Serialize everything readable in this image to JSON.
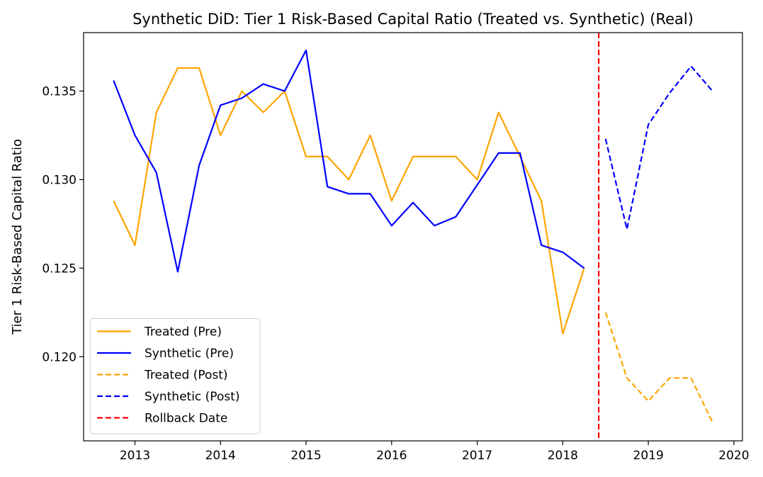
{
  "chart_data": {
    "type": "line",
    "title": "Synthetic DiD: Tier 1 Risk-Based Capital Ratio (Treated vs. Synthetic) (Real)",
    "xlabel": "",
    "ylabel": "Tier 1 Risk-Based Capital Ratio",
    "xlim": [
      2012.4,
      2020.1
    ],
    "ylim": [
      0.11525,
      0.1383
    ],
    "xticks": [
      2013,
      2014,
      2015,
      2016,
      2017,
      2018,
      2019,
      2020
    ],
    "yticks": [
      0.12,
      0.125,
      0.13,
      0.135
    ],
    "ytick_labels": [
      "0.120",
      "0.125",
      "0.130",
      "0.135"
    ],
    "grid": false,
    "legend_position": "lower-left",
    "series": [
      {
        "name": "Treated (Pre)",
        "color": "#FFA500",
        "style": "solid",
        "x": [
          2012.75,
          2013.0,
          2013.25,
          2013.5,
          2013.75,
          2014.0,
          2014.25,
          2014.5,
          2014.75,
          2015.0,
          2015.25,
          2015.5,
          2015.75,
          2016.0,
          2016.25,
          2016.5,
          2016.75,
          2017.0,
          2017.25,
          2017.5,
          2017.75,
          2018.0,
          2018.25
        ],
        "values": [
          0.1288,
          0.1263,
          0.1338,
          0.1363,
          0.1363,
          0.1325,
          0.135,
          0.1338,
          0.135,
          0.1313,
          0.1313,
          0.13,
          0.1325,
          0.1288,
          0.1313,
          0.1313,
          0.1313,
          0.13,
          0.1338,
          0.1313,
          0.1288,
          0.1213,
          0.125
        ]
      },
      {
        "name": "Synthetic (Pre)",
        "color": "#0000FF",
        "style": "solid",
        "x": [
          2012.75,
          2013.0,
          2013.25,
          2013.5,
          2013.75,
          2014.0,
          2014.25,
          2014.5,
          2014.75,
          2015.0,
          2015.25,
          2015.5,
          2015.75,
          2016.0,
          2016.25,
          2016.5,
          2016.75,
          2017.0,
          2017.25,
          2017.5,
          2017.75,
          2018.0,
          2018.25
        ],
        "values": [
          0.1356,
          0.1325,
          0.1304,
          0.1248,
          0.1308,
          0.1342,
          0.1346,
          0.1354,
          0.135,
          0.1373,
          0.1296,
          0.1292,
          0.1292,
          0.1274,
          0.1287,
          0.1274,
          0.1279,
          0.1297,
          0.1315,
          0.1315,
          0.1263,
          0.1259,
          0.125
        ]
      },
      {
        "name": "Treated (Post)",
        "color": "#FFA500",
        "style": "dashed",
        "x": [
          2018.5,
          2018.75,
          2019.0,
          2019.25,
          2019.5,
          2019.75
        ],
        "values": [
          0.1225,
          0.1188,
          0.1175,
          0.1188,
          0.1188,
          0.1163
        ]
      },
      {
        "name": "Synthetic (Post)",
        "color": "#0000FF",
        "style": "dashed",
        "x": [
          2018.5,
          2018.75,
          2019.0,
          2019.25,
          2019.5,
          2019.75
        ],
        "values": [
          0.1323,
          0.1272,
          0.1331,
          0.1349,
          0.1364,
          0.135
        ]
      }
    ],
    "vlines": [
      {
        "name": "Rollback Date",
        "x": 2018.42,
        "color": "#FF0000",
        "style": "dashed"
      }
    ]
  }
}
